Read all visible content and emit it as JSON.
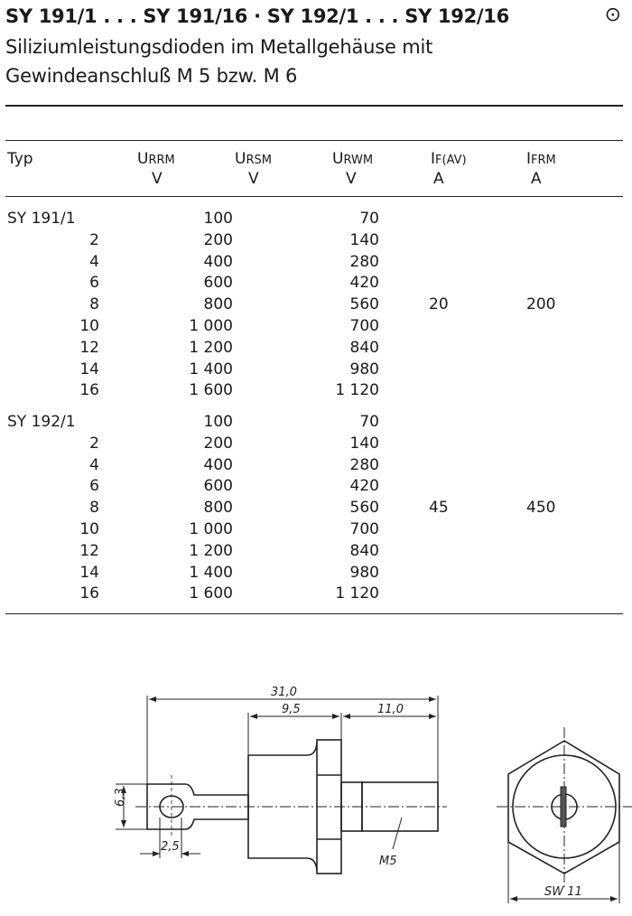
{
  "header": {
    "title": "SY 191/1 . . . SY 191/16 · SY 192/1 . . . SY 192/16",
    "symbol": "⊙",
    "subtitle_line1": "Siliziumleistungsdioden im Metallgehäuse mit",
    "subtitle_line2": "Gewindeanschluß M 5 bzw. M 6"
  },
  "table": {
    "columns": [
      {
        "symbol": "Typ",
        "sub": "",
        "unit": ""
      },
      {
        "symbol": "U",
        "sub": "RRM",
        "unit": "V"
      },
      {
        "symbol": "U",
        "sub": "RSM",
        "unit": "V"
      },
      {
        "symbol": "U",
        "sub": "RWM",
        "unit": "V"
      },
      {
        "symbol": "I",
        "sub": "F(AV)",
        "unit": "A"
      },
      {
        "symbol": "I",
        "sub": "FRM",
        "unit": "A"
      }
    ],
    "groups": [
      {
        "if_av": "20",
        "ifrm": "200",
        "rows": [
          [
            "SY 191/1",
            "100",
            "70"
          ],
          [
            "2",
            "200",
            "140"
          ],
          [
            "4",
            "400",
            "280"
          ],
          [
            "6",
            "600",
            "420"
          ],
          [
            "8",
            "800",
            "560"
          ],
          [
            "10",
            "1 000",
            "700"
          ],
          [
            "12",
            "1 200",
            "840"
          ],
          [
            "14",
            "1 400",
            "980"
          ],
          [
            "16",
            "1 600",
            "1 120"
          ]
        ]
      },
      {
        "if_av": "45",
        "ifrm": "450",
        "rows": [
          [
            "SY 192/1",
            "100",
            "70"
          ],
          [
            "2",
            "200",
            "140"
          ],
          [
            "4",
            "400",
            "280"
          ],
          [
            "6",
            "600",
            "420"
          ],
          [
            "8",
            "800",
            "560"
          ],
          [
            "10",
            "1 000",
            "700"
          ],
          [
            "12",
            "1 200",
            "840"
          ],
          [
            "14",
            "1 400",
            "980"
          ],
          [
            "16",
            "1 600",
            "1 120"
          ]
        ]
      }
    ]
  },
  "drawing": {
    "dim_total": "31,0",
    "dim_body": "9,5",
    "dim_thread": "11,0",
    "dim_lug_height": "6,3",
    "dim_hole": "2,5",
    "thread_label": "M5",
    "wrench_size": "SW 11"
  }
}
